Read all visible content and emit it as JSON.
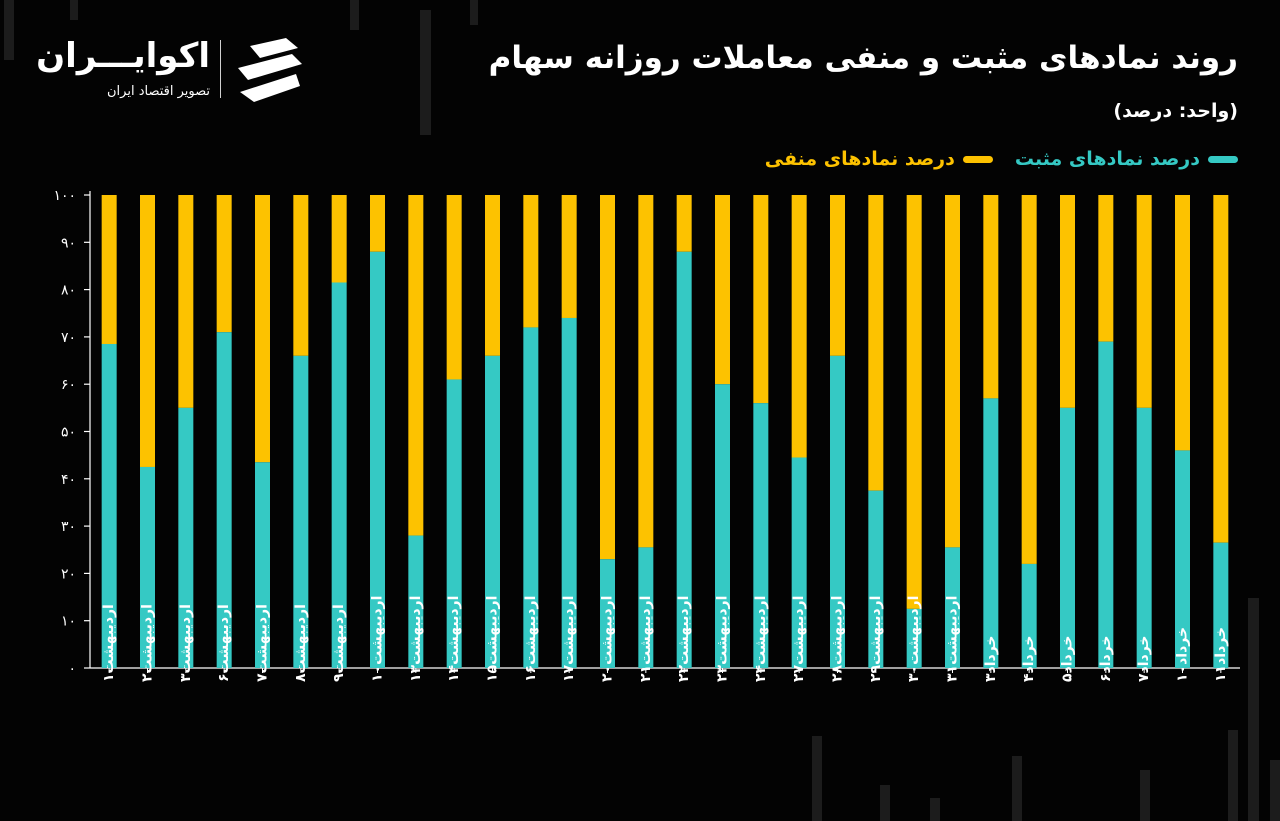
{
  "title": "روند نمادهای مثبت و منفی معاملات روزانه سهام",
  "unit": "(واحد: درصد)",
  "brand": {
    "name": "اکوایـــران",
    "subtitle": "تصویر اقتصاد ایران",
    "icon": "ecoiran-logo-icon"
  },
  "colors": {
    "positive": "#35c9c4",
    "negative": "#fdc200",
    "background": "#030303",
    "axis": "#ffffff"
  },
  "chart_data": {
    "type": "bar",
    "stacked": true,
    "ylim": [
      0,
      100
    ],
    "yticks": [
      0,
      10,
      20,
      30,
      40,
      50,
      60,
      70,
      80,
      90,
      100
    ],
    "ytick_labels": [
      "۰",
      "۱۰",
      "۲۰",
      "۳۰",
      "۴۰",
      "۵۰",
      "۶۰",
      "۷۰",
      "۸۰",
      "۹۰",
      "۱۰۰"
    ],
    "legend_position": "top-right",
    "grid": false,
    "categories": [
      "اردیبهشت۱",
      "اردیبهشت۲",
      "اردیبهشت۳",
      "اردیبهشت۶",
      "اردیبهشت۷",
      "اردیبهشت۸",
      "اردیبهشت۹",
      "اردیبهشت۱۰",
      "اردیبهشت۱۳",
      "اردیبهشت۱۴",
      "اردیبهشت۱۵",
      "اردیبهشت۱۶",
      "اردیبهشت۱۷",
      "اردیبهشت۲۰",
      "اردیبهشت۲۱",
      "اردیبهشت۲۲",
      "اردیبهشت۲۳",
      "اردیبهشت۲۴",
      "اردیبهشت۲۷",
      "اردیبهشت۲۸",
      "اردیبهشت۲۹",
      "اردیبهشت۳۰",
      "اردیبهشت۳۱",
      "خرداد۳",
      "خرداد۴",
      "خرداد۵",
      "خرداد۶",
      "خرداد۷",
      "خرداد۱۰",
      "خرداد۱۱"
    ],
    "series": [
      {
        "name": "درصد نمادهای مثبت",
        "values": [
          68.5,
          42.5,
          55,
          71,
          43.5,
          66,
          81.5,
          88,
          28,
          61,
          66,
          72,
          74,
          23,
          25.5,
          88,
          60,
          56,
          44.5,
          66,
          37.5,
          12.5,
          25.5,
          57,
          22,
          55,
          69,
          55,
          46,
          26.5
        ]
      },
      {
        "name": "درصد نمادهای منفی",
        "values": [
          31.5,
          57.5,
          45,
          29,
          56.5,
          34,
          18.5,
          12,
          72,
          39,
          34,
          28,
          26,
          77,
          74.5,
          12,
          40,
          44,
          55.5,
          34,
          62.5,
          87.5,
          74.5,
          43,
          78,
          45,
          31,
          45,
          54,
          73.5
        ]
      }
    ]
  }
}
